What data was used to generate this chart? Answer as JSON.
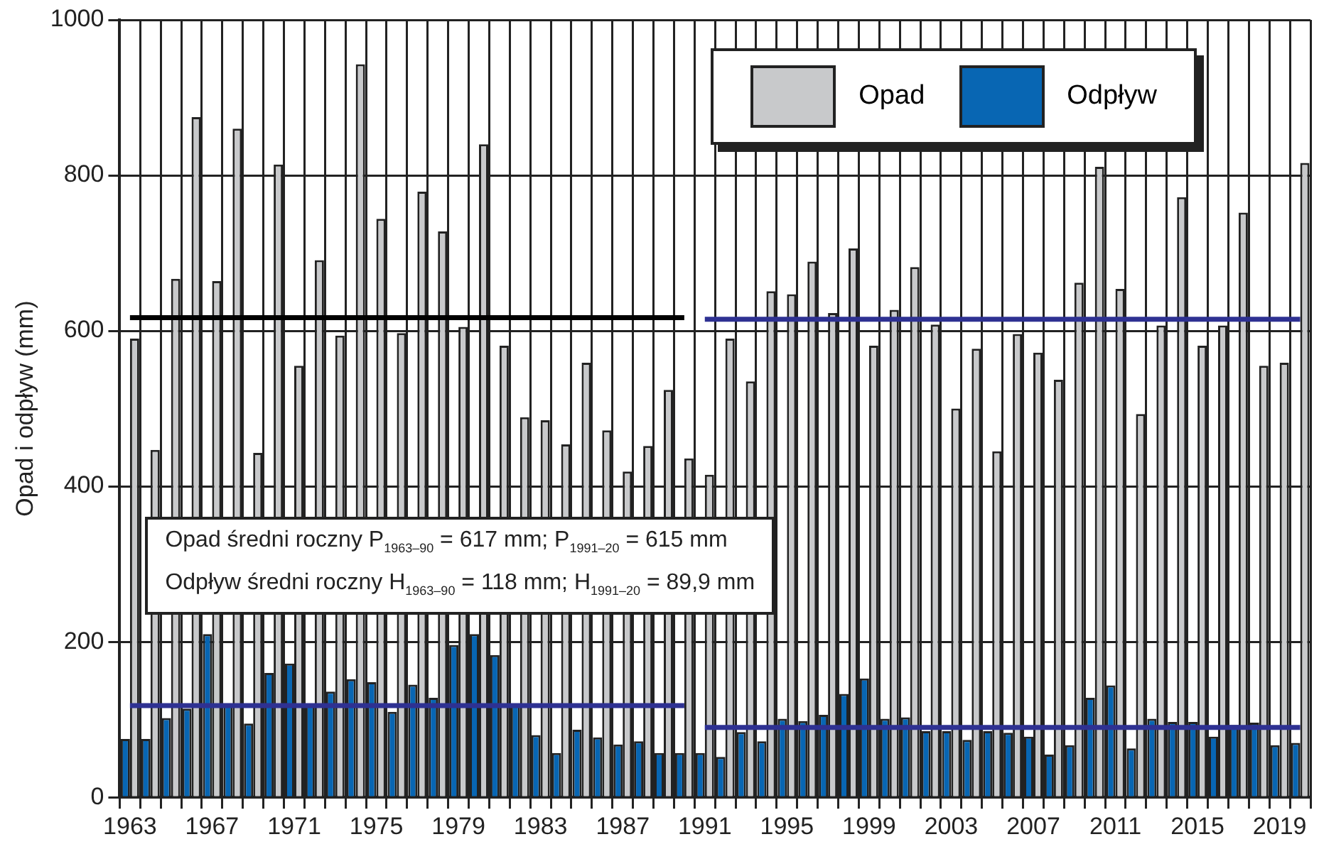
{
  "chart_data": {
    "type": "bar",
    "ylabel": "Opad i odpływ (mm)",
    "categories": [
      "1963",
      null,
      null,
      null,
      "1967",
      null,
      null,
      null,
      "1971",
      null,
      null,
      null,
      "1975",
      null,
      null,
      null,
      "1979",
      null,
      null,
      null,
      "1983",
      null,
      null,
      null,
      "1987",
      null,
      null,
      null,
      "1991",
      null,
      null,
      null,
      "1995",
      null,
      null,
      null,
      "1999",
      null,
      null,
      null,
      "2003",
      null,
      null,
      null,
      "2007",
      null,
      null,
      null,
      "2011",
      null,
      null,
      null,
      "2015",
      null,
      null,
      null,
      "2019",
      null
    ],
    "series": [
      {
        "name": "Opad",
        "color": "#c8c9cb",
        "values": [
          590,
          447,
          667,
          875,
          664,
          860,
          443,
          814,
          555,
          691,
          594,
          943,
          744,
          597,
          779,
          728,
          605,
          840,
          581,
          489,
          485,
          454,
          559,
          472,
          419,
          452,
          524,
          436,
          415,
          590,
          535,
          651,
          647,
          689,
          623,
          706,
          581,
          627,
          682,
          608,
          500,
          577,
          445,
          596,
          572,
          537,
          662,
          811,
          654,
          493,
          607,
          772,
          581,
          607,
          752,
          555,
          559,
          816
        ]
      },
      {
        "name": "Odpływ",
        "color": "#0866b3",
        "values": [
          75,
          75,
          102,
          114,
          210,
          121,
          95,
          160,
          172,
          120,
          136,
          152,
          148,
          110,
          145,
          128,
          196,
          210,
          183,
          118,
          80,
          57,
          87,
          77,
          68,
          72,
          57,
          57,
          57,
          52,
          84,
          72,
          101,
          98,
          106,
          133,
          153,
          101,
          103,
          85,
          85,
          74,
          85,
          83,
          78,
          55,
          67,
          128,
          144,
          63,
          101,
          97,
          97,
          78,
          93,
          96,
          67,
          70
        ]
      },
      {
        "type": "line",
        "color": "#000000",
        "values": [
          617,
          617,
          617,
          617,
          617,
          617,
          617,
          617,
          617,
          617,
          617,
          617,
          617,
          617,
          617,
          617,
          617,
          617,
          617,
          617,
          617,
          617,
          617,
          617,
          617,
          617,
          617,
          617,
          null,
          null,
          null,
          null,
          null,
          null,
          null,
          null,
          null,
          null,
          null,
          null,
          null,
          null,
          null,
          null,
          null,
          null,
          null,
          null,
          null,
          null,
          null,
          null,
          null,
          null,
          null,
          null,
          null,
          null
        ]
      },
      {
        "type": "line",
        "color": "#2e3192",
        "values": [
          null,
          null,
          null,
          null,
          null,
          null,
          null,
          null,
          null,
          null,
          null,
          null,
          null,
          null,
          null,
          null,
          null,
          null,
          null,
          null,
          null,
          null,
          null,
          null,
          null,
          null,
          null,
          null,
          615,
          615,
          615,
          615,
          615,
          615,
          615,
          615,
          615,
          615,
          615,
          615,
          615,
          615,
          615,
          615,
          615,
          615,
          615,
          615,
          615,
          615,
          615,
          615,
          615,
          615,
          615,
          615,
          615,
          615
        ]
      },
      {
        "type": "line",
        "color": "#2e3192",
        "values": [
          118,
          118,
          118,
          118,
          118,
          118,
          118,
          118,
          118,
          118,
          118,
          118,
          118,
          118,
          118,
          118,
          118,
          118,
          118,
          118,
          118,
          118,
          118,
          118,
          118,
          118,
          118,
          118,
          null,
          null,
          null,
          null,
          null,
          null,
          null,
          null,
          null,
          null,
          null,
          null,
          null,
          null,
          null,
          null,
          null,
          null,
          null,
          null,
          null,
          null,
          null,
          null,
          null,
          null,
          null,
          null,
          null,
          null
        ]
      },
      {
        "type": "line",
        "color": "#2e3192",
        "values": [
          null,
          null,
          null,
          null,
          null,
          null,
          null,
          null,
          null,
          null,
          null,
          null,
          null,
          null,
          null,
          null,
          null,
          null,
          null,
          null,
          null,
          null,
          null,
          null,
          null,
          null,
          null,
          null,
          89.9,
          89.9,
          89.9,
          89.9,
          89.9,
          89.9,
          89.9,
          89.9,
          89.9,
          89.9,
          89.9,
          89.9,
          89.9,
          89.9,
          89.9,
          89.9,
          89.9,
          89.9,
          89.9,
          89.9,
          89.9,
          89.9,
          89.9,
          89.9,
          89.9,
          89.9,
          89.9,
          89.9,
          89.9,
          89.9
        ]
      }
    ],
    "ylim": [
      0,
      1000
    ],
    "yticks": [
      0,
      200,
      400,
      600,
      800,
      1000
    ],
    "grid": true,
    "legend": "top right",
    "marker": "none",
    "annotations": [
      "Opad średni roczny  P$_{1963–90}$ = 617 mm; P$_{1991–20}$ = 615 mm",
      "Odpływ średni roczny H$_{1963–90}$ = 118 mm; H$_{1991–20}$ = 89,9 mm"
    ]
  }
}
